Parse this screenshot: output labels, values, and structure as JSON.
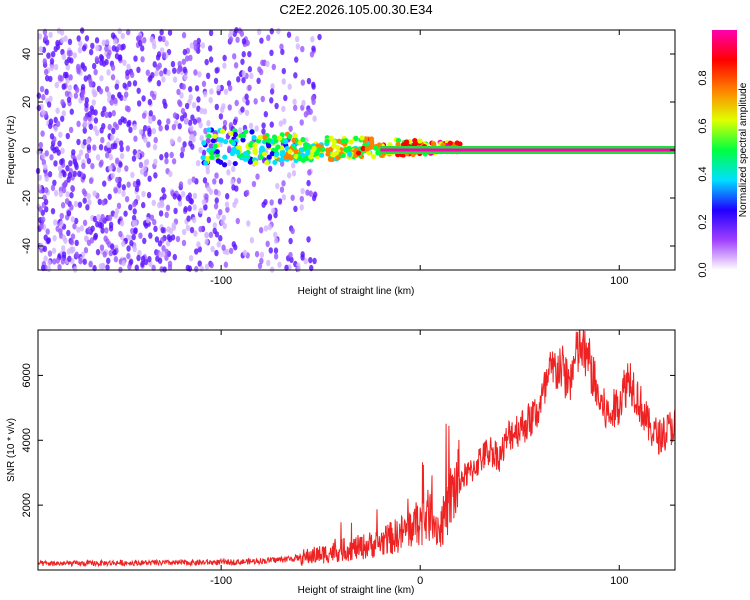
{
  "title": "C2E2.2026.105.00.30.E34",
  "colors": {
    "snr_line": "#ee2222",
    "axis": "#000000",
    "background": "#ffffff"
  },
  "chart_data": [
    {
      "type": "heatmap",
      "title": "C2E2.2026.105.00.30.E34",
      "xlabel": "Height of straight line (km)",
      "ylabel": "Frequency (Hz)",
      "xlim": [
        -192,
        128
      ],
      "ylim": [
        -50,
        50
      ],
      "x_ticks": [
        -100,
        0,
        100
      ],
      "x_tick_labels": [
        "-100",
        "",
        "100"
      ],
      "y_ticks": [
        -40,
        -20,
        0,
        20,
        40
      ],
      "y_tick_labels": [
        "-40",
        "-20",
        "0",
        "20",
        "40"
      ],
      "colorbar": {
        "label": "Normalized spectral amplitude",
        "range": [
          0,
          1
        ],
        "ticks": [
          0,
          0.2,
          0.4,
          0.6,
          0.8
        ],
        "tick_labels": [
          "0.0",
          "0.2",
          "0.4",
          "0.6",
          "0.8"
        ],
        "colormap": [
          "#ffffff",
          "#a040ff",
          "#2000ff",
          "#00e0ff",
          "#00ff40",
          "#e0ff00",
          "#ff8000",
          "#ff0000",
          "#ff00b0"
        ]
      },
      "features": [
        {
          "description": "broadband noise",
          "x_range": [
            -192,
            -50
          ],
          "freq_range": [
            -50,
            50
          ],
          "amplitude": 0.1
        },
        {
          "description": "narrowband carrier",
          "x_range": [
            -105,
            128
          ],
          "freq": 0,
          "amplitude": 0.95
        }
      ]
    },
    {
      "type": "line",
      "xlabel": "Height of straight line (km)",
      "ylabel": "SNR (10 * v/v)",
      "xlim": [
        -192,
        128
      ],
      "ylim": [
        0,
        7400
      ],
      "x_ticks": [
        -100,
        0,
        100
      ],
      "x_tick_labels": [
        "-100",
        "0",
        "100"
      ],
      "y_ticks": [
        2000,
        4000,
        6000
      ],
      "y_tick_labels": [
        "2000",
        "4000",
        "6000"
      ],
      "series": [
        {
          "x": [
            -192,
            -170,
            -150,
            -130,
            -110,
            -90,
            -80,
            -70,
            -60,
            -50,
            -40,
            -30,
            -20,
            -10,
            0,
            5,
            10,
            15,
            20,
            25,
            30,
            35,
            40,
            45,
            50,
            55,
            60,
            65,
            70,
            75,
            80,
            85,
            90,
            95,
            100,
            105,
            110,
            115,
            120,
            128
          ],
          "y": [
            200,
            200,
            220,
            220,
            230,
            250,
            280,
            320,
            380,
            480,
            600,
            700,
            850,
            1100,
            1500,
            1700,
            1200,
            2200,
            2800,
            3000,
            3400,
            3700,
            3500,
            4200,
            4400,
            4600,
            5000,
            6000,
            6300,
            5800,
            6900,
            6400,
            5200,
            4700,
            5200,
            6000,
            5200,
            4400,
            4100,
            4500
          ]
        }
      ]
    }
  ]
}
